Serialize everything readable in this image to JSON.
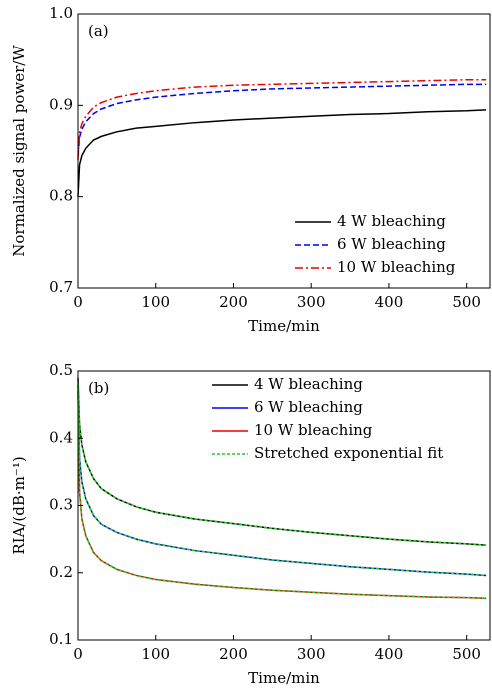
{
  "chart_data": [
    {
      "type": "line",
      "panel_label": "(a)",
      "x_label": "Time/min",
      "y_label": "Normalized signal power/W",
      "x": [
        0,
        2,
        5,
        10,
        20,
        30,
        50,
        75,
        100,
        150,
        200,
        250,
        300,
        350,
        400,
        450,
        500,
        525
      ],
      "xlim": [
        0,
        530
      ],
      "xticks": [
        0,
        100,
        200,
        300,
        400,
        500
      ],
      "ylim": [
        0.7,
        1.0
      ],
      "yticks": [
        0.7,
        0.8,
        0.9,
        {
          "value": 1,
          "label": "1.0"
        }
      ],
      "legend": "lower right",
      "series": [
        {
          "name": "4 W bleaching",
          "color": "#000000",
          "style": "solid",
          "values": [
            0.8,
            0.835,
            0.845,
            0.853,
            0.862,
            0.866,
            0.871,
            0.875,
            0.877,
            0.881,
            0.884,
            0.886,
            0.888,
            0.89,
            0.891,
            0.893,
            0.894,
            0.895
          ]
        },
        {
          "name": "6 W bleaching",
          "color": "#0000ee",
          "style": "dashed",
          "values": [
            0.845,
            0.865,
            0.874,
            0.882,
            0.891,
            0.896,
            0.902,
            0.906,
            0.909,
            0.913,
            0.916,
            0.918,
            0.919,
            0.92,
            0.921,
            0.922,
            0.923,
            0.923
          ]
        },
        {
          "name": "10 W bleaching",
          "color": "#ee0000",
          "style": "dashdot",
          "values": [
            0.84,
            0.87,
            0.88,
            0.888,
            0.898,
            0.903,
            0.909,
            0.913,
            0.916,
            0.92,
            0.922,
            0.923,
            0.924,
            0.925,
            0.926,
            0.927,
            0.928,
            0.928
          ]
        }
      ]
    },
    {
      "type": "line",
      "panel_label": "(b)",
      "x_label": "Time/min",
      "y_label": "RIA/(dB·m⁻¹)",
      "x": [
        0,
        2,
        5,
        10,
        20,
        30,
        50,
        75,
        100,
        150,
        200,
        250,
        300,
        350,
        400,
        450,
        500,
        525
      ],
      "xlim": [
        0,
        530
      ],
      "xticks": [
        0,
        100,
        200,
        300,
        400,
        500
      ],
      "ylim": [
        0.1,
        0.5
      ],
      "yticks": [
        0.1,
        0.2,
        0.3,
        0.4,
        0.5
      ],
      "legend": "upper right",
      "series": [
        {
          "name": "4 W bleaching",
          "color": "#000000",
          "style": "solid",
          "values": [
            0.49,
            0.42,
            0.39,
            0.365,
            0.34,
            0.325,
            0.31,
            0.298,
            0.29,
            0.28,
            0.273,
            0.266,
            0.26,
            0.255,
            0.25,
            0.246,
            0.243,
            0.241
          ]
        },
        {
          "name": "6 W bleaching",
          "color": "#0000ee",
          "style": "solid",
          "values": [
            0.48,
            0.37,
            0.335,
            0.31,
            0.285,
            0.272,
            0.26,
            0.25,
            0.243,
            0.233,
            0.226,
            0.219,
            0.214,
            0.209,
            0.205,
            0.201,
            0.198,
            0.196
          ]
        },
        {
          "name": "10 W bleaching",
          "color": "#ee0000",
          "style": "solid",
          "values": [
            0.47,
            0.32,
            0.28,
            0.255,
            0.23,
            0.218,
            0.205,
            0.196,
            0.19,
            0.183,
            0.178,
            0.174,
            0.171,
            0.168,
            0.166,
            0.164,
            0.163,
            0.162
          ]
        },
        {
          "name": "Stretched exponential fit",
          "color": "#22cc22",
          "style": "dotted",
          "values": [
            [
              0.49,
              0.42,
              0.39,
              0.365,
              0.34,
              0.325,
              0.31,
              0.298,
              0.29,
              0.28,
              0.273,
              0.266,
              0.26,
              0.255,
              0.25,
              0.246,
              0.243,
              0.241
            ],
            [
              0.48,
              0.37,
              0.335,
              0.31,
              0.285,
              0.272,
              0.26,
              0.25,
              0.243,
              0.233,
              0.226,
              0.219,
              0.214,
              0.209,
              0.205,
              0.201,
              0.198,
              0.196
            ],
            [
              0.47,
              0.32,
              0.28,
              0.255,
              0.23,
              0.218,
              0.205,
              0.196,
              0.19,
              0.183,
              0.178,
              0.174,
              0.171,
              0.168,
              0.166,
              0.164,
              0.163,
              0.162
            ]
          ]
        }
      ]
    }
  ]
}
